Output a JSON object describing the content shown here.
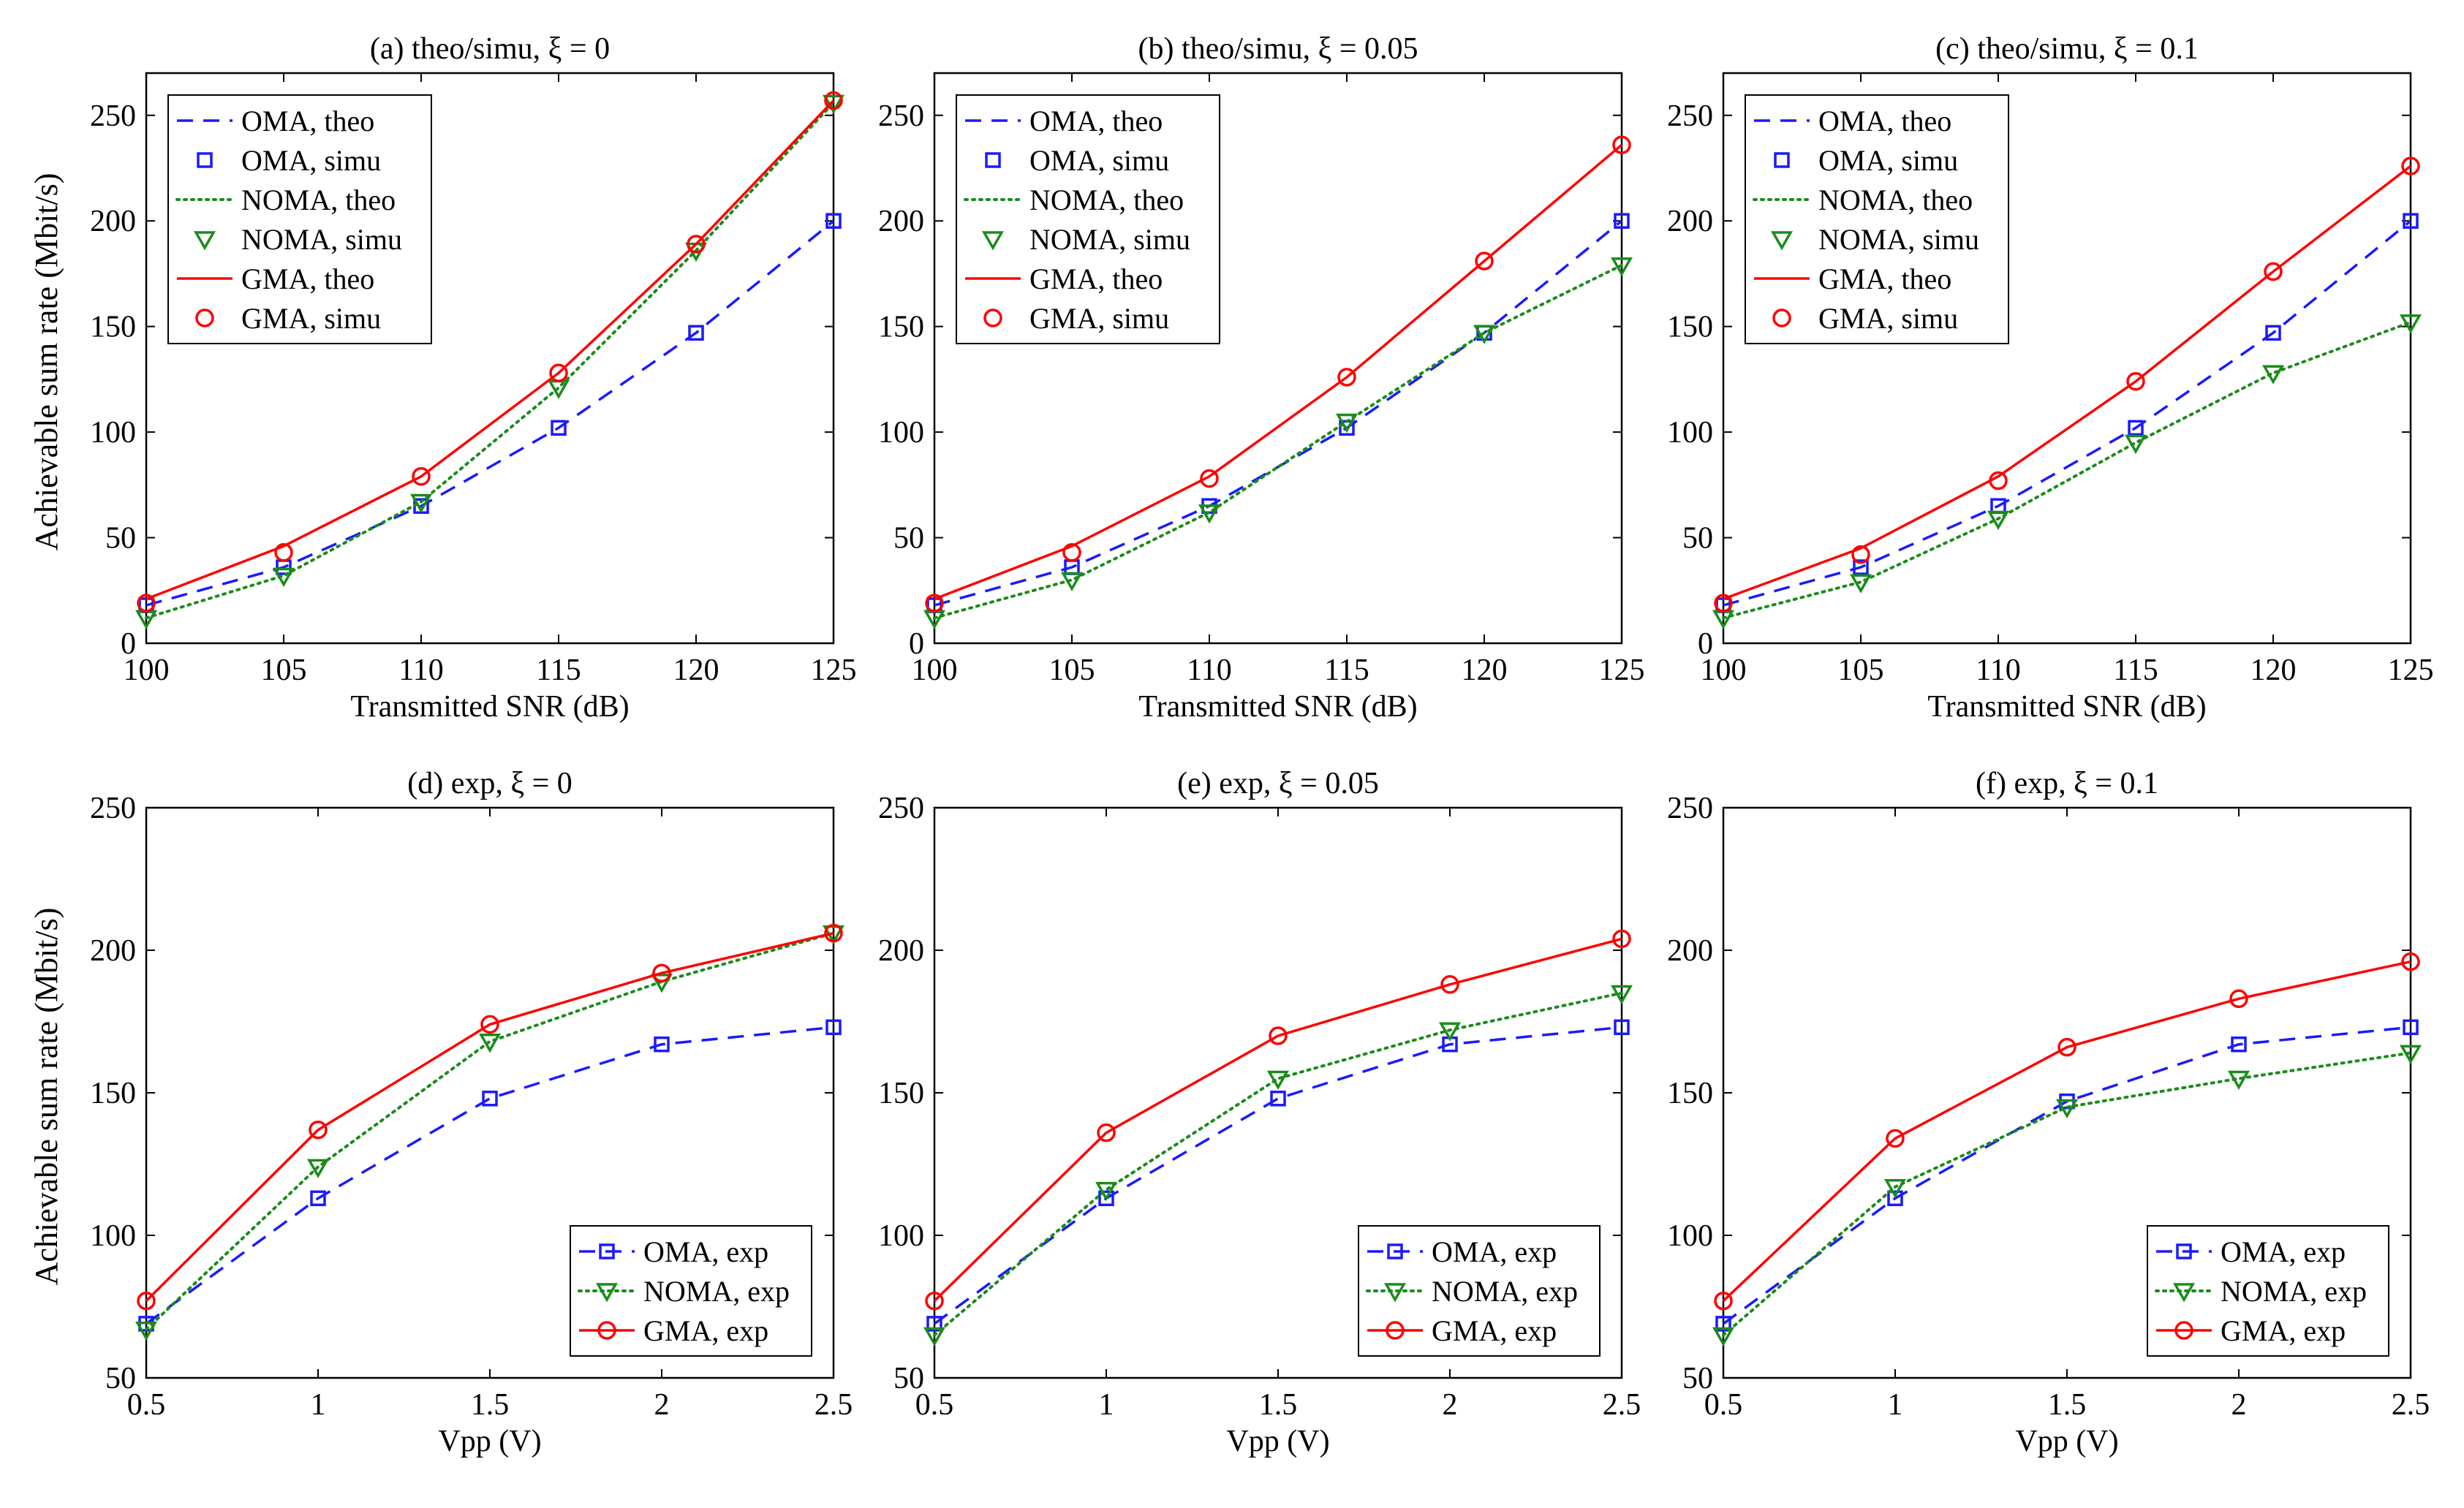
{
  "figure": {
    "ylabel_top": "Achievable sum rate (Mbit/s)",
    "ylabel_bottom": "Achievable sum rate (Mbit/s)"
  },
  "colors": {
    "OMA": "#1a1aff",
    "NOMA": "#1a8c1a",
    "GMA": "#ff0000"
  },
  "chart_data": [
    {
      "id": "a",
      "type": "line",
      "title": "(a) theo/simu, ξ = 0",
      "xlabel": "Transmitted SNR (dB)",
      "ylabel": "Achievable sum rate (Mbit/s)",
      "x": [
        100,
        105,
        110,
        115,
        120,
        125
      ],
      "xticks": [
        "100",
        "105",
        "110",
        "115",
        "120",
        "125"
      ],
      "xlim": [
        100,
        125
      ],
      "ylim": [
        0,
        270
      ],
      "yticks": [
        0,
        50,
        100,
        150,
        200,
        250
      ],
      "legend_position": "top-left",
      "series": [
        {
          "name": "OMA, theo",
          "group": "OMA",
          "kind": "line",
          "dash": "dashed",
          "values": [
            18,
            36,
            65,
            102,
            147,
            200
          ]
        },
        {
          "name": "OMA, simu",
          "group": "OMA",
          "kind": "markers",
          "marker": "square",
          "values": [
            18,
            36,
            65,
            102,
            147,
            200
          ]
        },
        {
          "name": "NOMA, theo",
          "group": "NOMA",
          "kind": "line",
          "dash": "dotted",
          "values": [
            12,
            32,
            67,
            121,
            186,
            256
          ]
        },
        {
          "name": "NOMA, simu",
          "group": "NOMA",
          "kind": "markers",
          "marker": "triangle",
          "values": [
            12,
            32,
            67,
            121,
            186,
            256
          ]
        },
        {
          "name": "GMA, theo",
          "group": "GMA",
          "kind": "line",
          "dash": "solid",
          "values": [
            21,
            46,
            79,
            128,
            189,
            257
          ]
        },
        {
          "name": "GMA, simu",
          "group": "GMA",
          "kind": "markers",
          "marker": "circle",
          "values": [
            19,
            43,
            79,
            128,
            189,
            257
          ]
        }
      ]
    },
    {
      "id": "b",
      "type": "line",
      "title": "(b) theo/simu, ξ = 0.05",
      "xlabel": "Transmitted SNR (dB)",
      "ylabel": "",
      "x": [
        100,
        105,
        110,
        115,
        120,
        125
      ],
      "xticks": [
        "100",
        "105",
        "110",
        "115",
        "120",
        "125"
      ],
      "xlim": [
        100,
        125
      ],
      "ylim": [
        0,
        270
      ],
      "yticks": [
        0,
        50,
        100,
        150,
        200,
        250
      ],
      "legend_position": "top-left",
      "series": [
        {
          "name": "OMA, theo",
          "group": "OMA",
          "kind": "line",
          "dash": "dashed",
          "values": [
            18,
            36,
            65,
            102,
            147,
            200
          ]
        },
        {
          "name": "OMA, simu",
          "group": "OMA",
          "kind": "markers",
          "marker": "square",
          "values": [
            18,
            36,
            65,
            102,
            147,
            200
          ]
        },
        {
          "name": "NOMA, theo",
          "group": "NOMA",
          "kind": "line",
          "dash": "dotted",
          "values": [
            12,
            30,
            62,
            105,
            147,
            179
          ]
        },
        {
          "name": "NOMA, simu",
          "group": "NOMA",
          "kind": "markers",
          "marker": "triangle",
          "values": [
            12,
            30,
            62,
            105,
            147,
            179
          ]
        },
        {
          "name": "GMA, theo",
          "group": "GMA",
          "kind": "line",
          "dash": "solid",
          "values": [
            21,
            46,
            79,
            126,
            181,
            236
          ]
        },
        {
          "name": "GMA, simu",
          "group": "GMA",
          "kind": "markers",
          "marker": "circle",
          "values": [
            19,
            43,
            78,
            126,
            181,
            236
          ]
        }
      ]
    },
    {
      "id": "c",
      "type": "line",
      "title": "(c) theo/simu, ξ = 0.1",
      "xlabel": "Transmitted SNR (dB)",
      "ylabel": "",
      "x": [
        100,
        105,
        110,
        115,
        120,
        125
      ],
      "xticks": [
        "100",
        "105",
        "110",
        "115",
        "120",
        "125"
      ],
      "xlim": [
        100,
        125
      ],
      "ylim": [
        0,
        270
      ],
      "yticks": [
        0,
        50,
        100,
        150,
        200,
        250
      ],
      "legend_position": "top-left",
      "series": [
        {
          "name": "OMA, theo",
          "group": "OMA",
          "kind": "line",
          "dash": "dashed",
          "values": [
            18,
            36,
            65,
            102,
            147,
            200
          ]
        },
        {
          "name": "OMA, simu",
          "group": "OMA",
          "kind": "markers",
          "marker": "square",
          "values": [
            18,
            36,
            65,
            102,
            147,
            200
          ]
        },
        {
          "name": "NOMA, theo",
          "group": "NOMA",
          "kind": "line",
          "dash": "dotted",
          "values": [
            12,
            29,
            59,
            95,
            128,
            152
          ]
        },
        {
          "name": "NOMA, simu",
          "group": "NOMA",
          "kind": "markers",
          "marker": "triangle",
          "values": [
            12,
            29,
            59,
            95,
            128,
            152
          ]
        },
        {
          "name": "GMA, theo",
          "group": "GMA",
          "kind": "line",
          "dash": "solid",
          "values": [
            21,
            45,
            79,
            124,
            176,
            226
          ]
        },
        {
          "name": "GMA, simu",
          "group": "GMA",
          "kind": "markers",
          "marker": "circle",
          "values": [
            19,
            42,
            77,
            124,
            176,
            226
          ]
        }
      ]
    },
    {
      "id": "d",
      "type": "line",
      "title": "(d) exp, ξ = 0",
      "xlabel": "Vpp (V)",
      "ylabel": "Achievable sum rate (Mbit/s)",
      "x": [
        0.5,
        1,
        1.5,
        2,
        2.5
      ],
      "xticks": [
        "0.5",
        "1",
        "1.5",
        "2",
        "2.5"
      ],
      "xlim": [
        0.5,
        2.5
      ],
      "ylim": [
        50,
        250
      ],
      "yticks": [
        50,
        100,
        150,
        200,
        250
      ],
      "legend_position": "bottom-right",
      "series": [
        {
          "name": "OMA, exp",
          "group": "OMA",
          "kind": "line+markers",
          "dash": "dashed",
          "marker": "square",
          "values": [
            69,
            113,
            148,
            167,
            173
          ]
        },
        {
          "name": "NOMA, exp",
          "group": "NOMA",
          "kind": "line+markers",
          "dash": "dotted",
          "marker": "triangle",
          "values": [
            67,
            124,
            168,
            189,
            206
          ]
        },
        {
          "name": "GMA, exp",
          "group": "GMA",
          "kind": "line+markers",
          "dash": "solid",
          "marker": "circle",
          "values": [
            77,
            137,
            174,
            192,
            206
          ]
        }
      ]
    },
    {
      "id": "e",
      "type": "line",
      "title": "(e) exp, ξ = 0.05",
      "xlabel": "Vpp (V)",
      "ylabel": "",
      "x": [
        0.5,
        1,
        1.5,
        2,
        2.5
      ],
      "xticks": [
        "0.5",
        "1",
        "1.5",
        "2",
        "2.5"
      ],
      "xlim": [
        0.5,
        2.5
      ],
      "ylim": [
        50,
        250
      ],
      "yticks": [
        50,
        100,
        150,
        200,
        250
      ],
      "legend_position": "bottom-right",
      "series": [
        {
          "name": "OMA, exp",
          "group": "OMA",
          "kind": "line+markers",
          "dash": "dashed",
          "marker": "square",
          "values": [
            69,
            113,
            148,
            167,
            173
          ]
        },
        {
          "name": "NOMA, exp",
          "group": "NOMA",
          "kind": "line+markers",
          "dash": "dotted",
          "marker": "triangle",
          "values": [
            65,
            116,
            155,
            172,
            185
          ]
        },
        {
          "name": "GMA, exp",
          "group": "GMA",
          "kind": "line+markers",
          "dash": "solid",
          "marker": "circle",
          "values": [
            77,
            136,
            170,
            188,
            204
          ]
        }
      ]
    },
    {
      "id": "f",
      "type": "line",
      "title": "(f) exp, ξ = 0.1",
      "xlabel": "Vpp (V)",
      "ylabel": "",
      "x": [
        0.5,
        1,
        1.5,
        2,
        2.5
      ],
      "xticks": [
        "0.5",
        "1",
        "1.5",
        "2",
        "2.5"
      ],
      "xlim": [
        0.5,
        2.5
      ],
      "ylim": [
        50,
        250
      ],
      "yticks": [
        50,
        100,
        150,
        200,
        250
      ],
      "legend_position": "bottom-right",
      "series": [
        {
          "name": "OMA, exp",
          "group": "OMA",
          "kind": "line+markers",
          "dash": "dashed",
          "marker": "square",
          "values": [
            69,
            113,
            147,
            167,
            173
          ]
        },
        {
          "name": "NOMA, exp",
          "group": "NOMA",
          "kind": "line+markers",
          "dash": "dotted",
          "marker": "triangle",
          "values": [
            65,
            117,
            145,
            155,
            164
          ]
        },
        {
          "name": "GMA, exp",
          "group": "GMA",
          "kind": "line+markers",
          "dash": "solid",
          "marker": "circle",
          "values": [
            77,
            134,
            166,
            183,
            196
          ]
        }
      ]
    }
  ]
}
